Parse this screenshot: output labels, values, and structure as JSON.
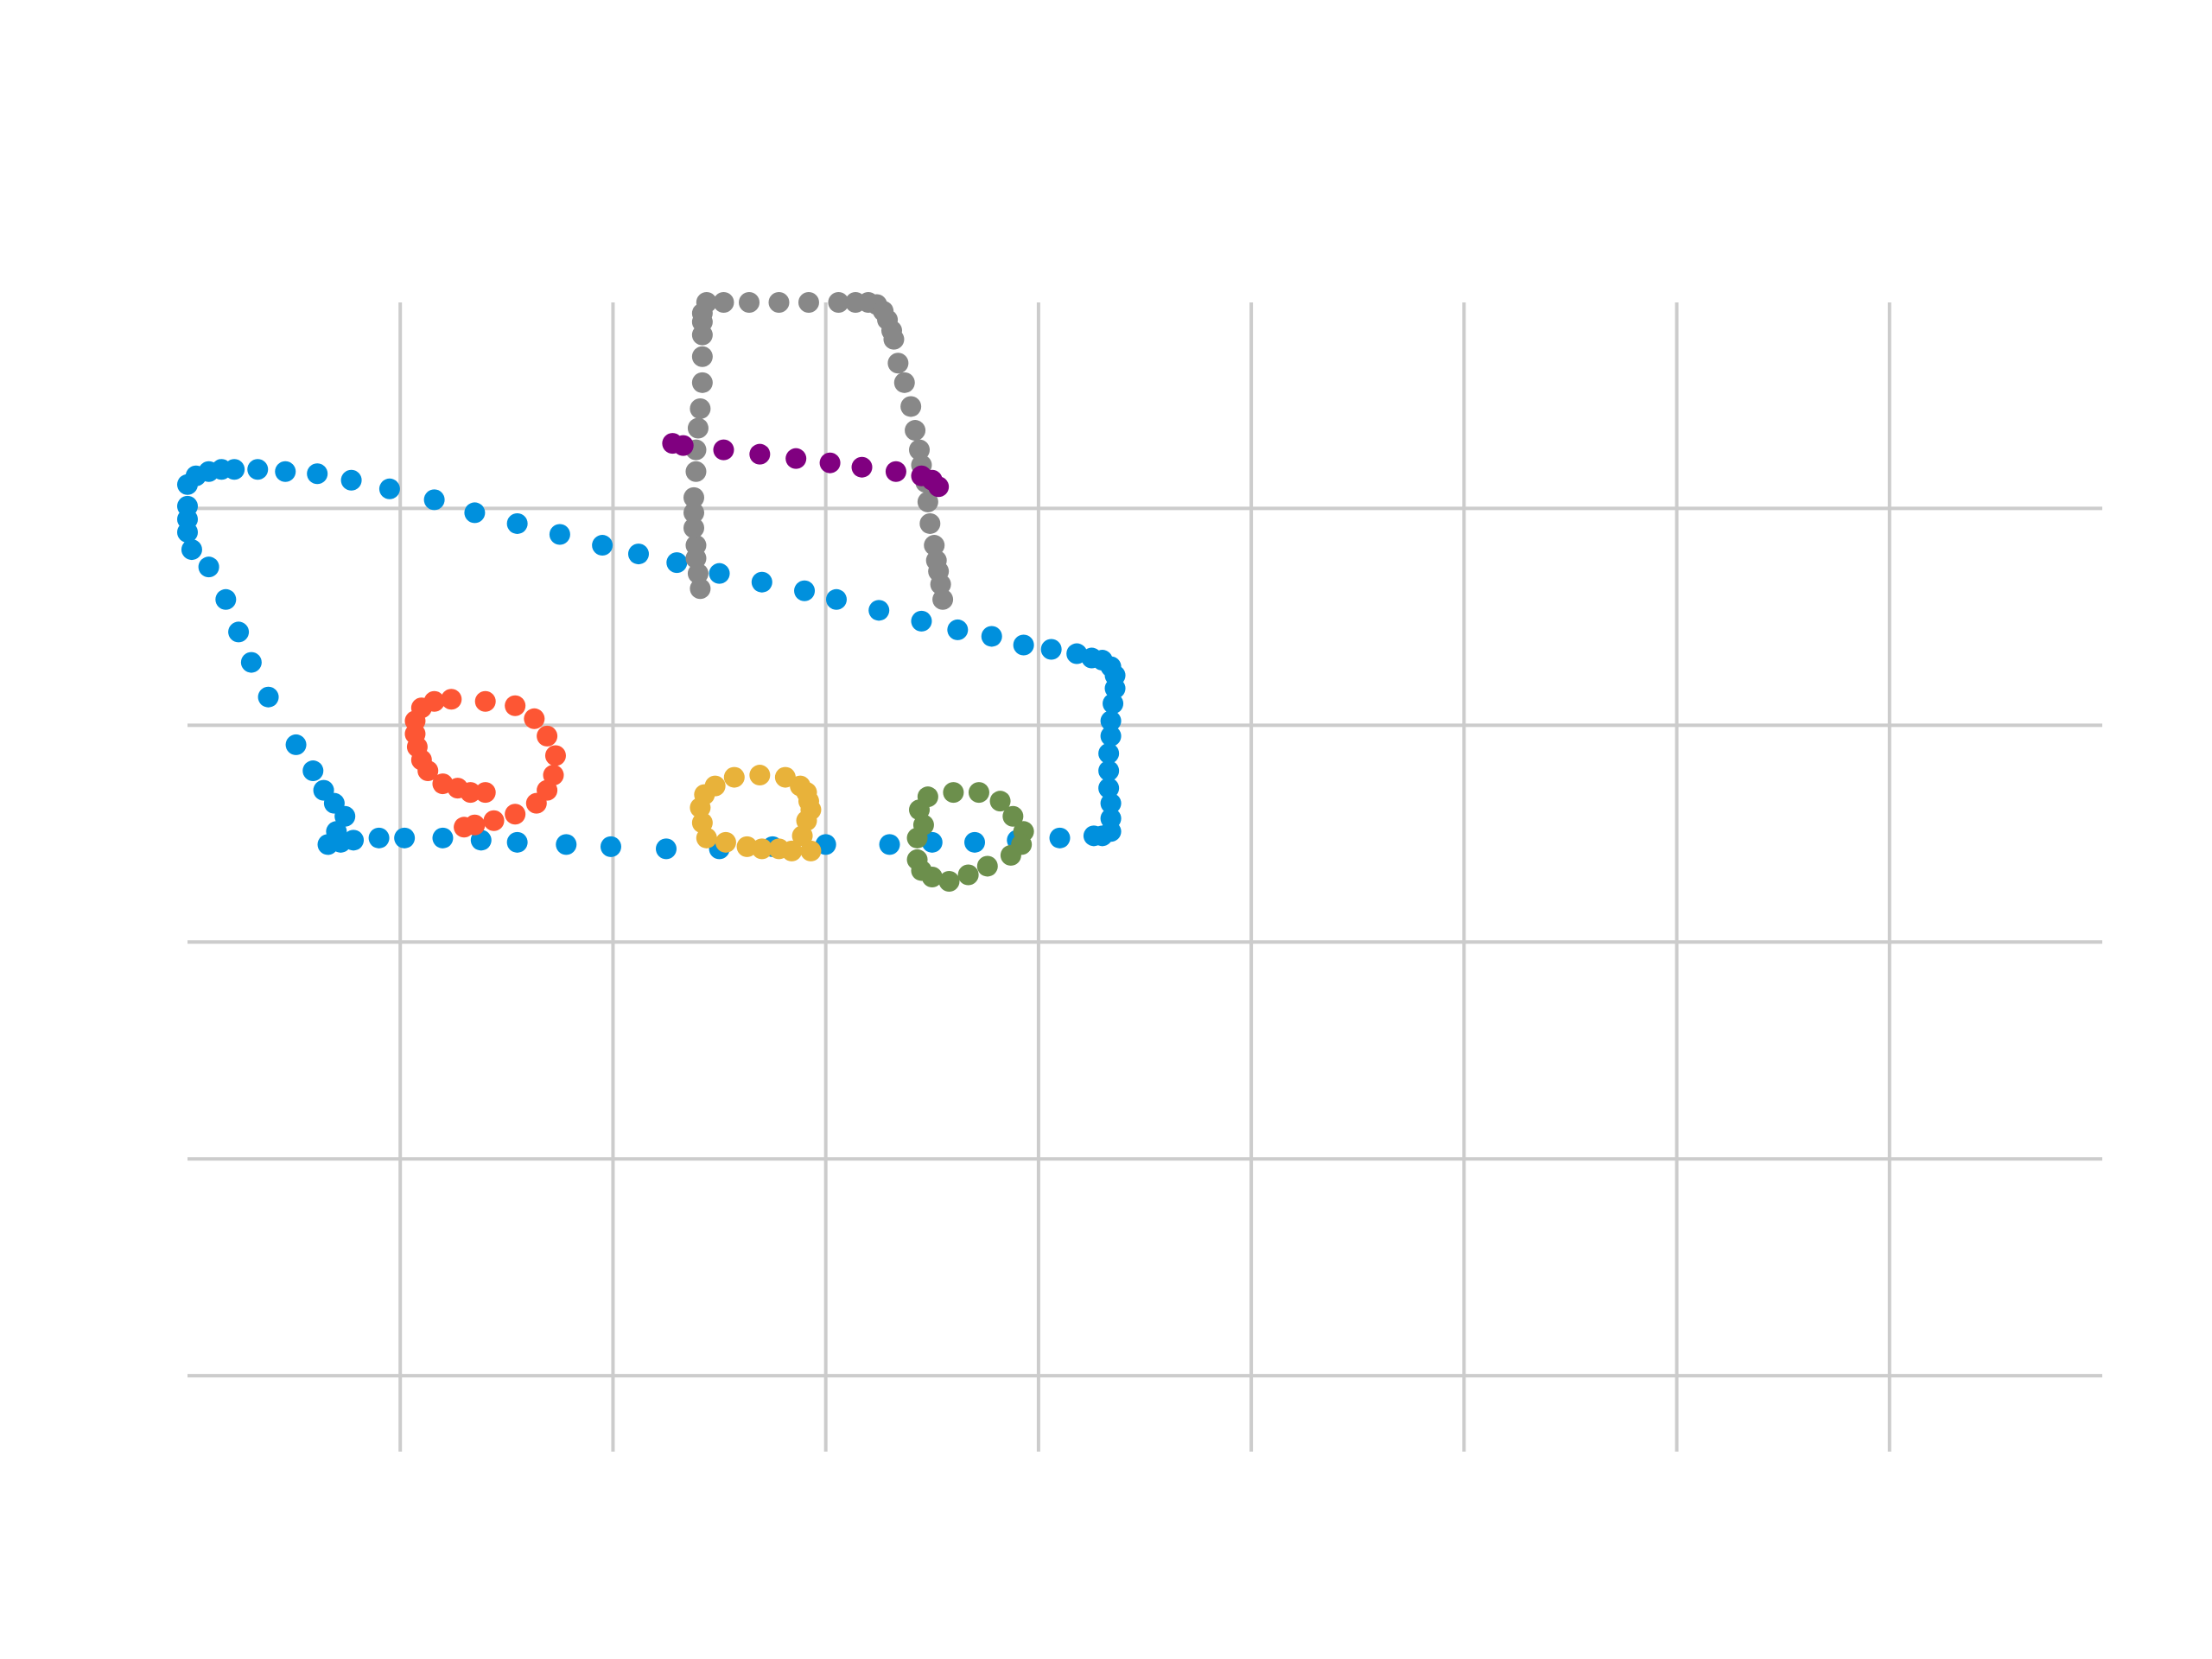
{
  "chart_data": {
    "type": "scatter",
    "title": "",
    "xlabel": "",
    "ylabel": "",
    "xlim": [
      0,
      9
    ],
    "ylim": [
      0,
      5.3
    ],
    "x_gridlines": [
      1,
      2,
      3,
      4,
      5,
      6,
      7,
      8
    ],
    "y_gridlines": [
      0.35,
      1.35,
      2.35,
      3.35,
      4.35
    ],
    "grid": true,
    "legend": "none",
    "series": [
      {
        "color": "#0090dd",
        "points": [
          [
            0.0,
            4.46
          ],
          [
            0.04,
            4.5
          ],
          [
            0.1,
            4.52
          ],
          [
            0.16,
            4.53
          ],
          [
            0.22,
            4.53
          ],
          [
            0.33,
            4.53
          ],
          [
            0.46,
            4.52
          ],
          [
            0.61,
            4.51
          ],
          [
            0.77,
            4.48
          ],
          [
            0.95,
            4.44
          ],
          [
            1.16,
            4.39
          ],
          [
            1.35,
            4.33
          ],
          [
            1.55,
            4.28
          ],
          [
            1.75,
            4.23
          ],
          [
            1.95,
            4.18
          ],
          [
            2.12,
            4.14
          ],
          [
            2.3,
            4.1
          ],
          [
            2.5,
            4.05
          ],
          [
            2.7,
            4.01
          ],
          [
            2.9,
            3.97
          ],
          [
            3.05,
            3.93
          ],
          [
            3.25,
            3.88
          ],
          [
            3.45,
            3.83
          ],
          [
            3.62,
            3.79
          ],
          [
            3.78,
            3.76
          ],
          [
            3.93,
            3.72
          ],
          [
            4.06,
            3.7
          ],
          [
            4.18,
            3.68
          ],
          [
            4.25,
            3.66
          ],
          [
            4.3,
            3.65
          ],
          [
            4.34,
            3.62
          ],
          [
            4.36,
            3.58
          ],
          [
            4.36,
            3.52
          ],
          [
            4.35,
            3.45
          ],
          [
            4.34,
            3.37
          ],
          [
            4.34,
            3.3
          ],
          [
            4.33,
            3.22
          ],
          [
            4.33,
            3.14
          ],
          [
            4.33,
            3.06
          ],
          [
            4.34,
            2.99
          ],
          [
            4.34,
            2.92
          ],
          [
            4.34,
            2.86
          ],
          [
            4.3,
            2.84
          ],
          [
            4.26,
            2.84
          ],
          [
            4.1,
            2.83
          ],
          [
            3.9,
            2.82
          ],
          [
            3.7,
            2.81
          ],
          [
            3.5,
            2.81
          ],
          [
            3.3,
            2.8
          ],
          [
            3.0,
            2.8
          ],
          [
            2.75,
            2.79
          ],
          [
            2.5,
            2.78
          ],
          [
            2.25,
            2.78
          ],
          [
            1.99,
            2.79
          ],
          [
            1.78,
            2.8
          ],
          [
            1.55,
            2.81
          ],
          [
            1.38,
            2.82
          ],
          [
            1.2,
            2.83
          ],
          [
            1.02,
            2.83
          ],
          [
            0.9,
            2.83
          ],
          [
            0.78,
            2.82
          ],
          [
            0.72,
            2.81
          ],
          [
            0.66,
            2.8
          ],
          [
            0.7,
            2.86
          ],
          [
            0.74,
            2.93
          ],
          [
            0.69,
            2.99
          ],
          [
            0.64,
            3.05
          ],
          [
            0.59,
            3.14
          ],
          [
            0.51,
            3.26
          ],
          [
            0.38,
            3.48
          ],
          [
            0.3,
            3.64
          ],
          [
            0.24,
            3.78
          ],
          [
            0.18,
            3.93
          ],
          [
            0.1,
            4.08
          ],
          [
            0.02,
            4.16
          ],
          [
            0.0,
            4.24
          ],
          [
            0.0,
            4.3
          ],
          [
            0.0,
            4.36
          ]
        ]
      },
      {
        "color": "#888888",
        "points": [
          [
            2.41,
            3.98
          ],
          [
            2.4,
            4.05
          ],
          [
            2.39,
            4.12
          ],
          [
            2.39,
            4.18
          ],
          [
            2.38,
            4.26
          ],
          [
            2.38,
            4.33
          ],
          [
            2.38,
            4.4
          ],
          [
            2.39,
            4.52
          ],
          [
            2.39,
            4.62
          ],
          [
            2.4,
            4.72
          ],
          [
            2.41,
            4.81
          ],
          [
            2.42,
            4.93
          ],
          [
            2.42,
            5.05
          ],
          [
            2.42,
            5.15
          ],
          [
            2.42,
            5.21
          ],
          [
            2.42,
            5.25
          ],
          [
            2.44,
            5.3
          ],
          [
            2.52,
            5.3
          ],
          [
            2.64,
            5.3
          ],
          [
            2.78,
            5.3
          ],
          [
            2.92,
            5.3
          ],
          [
            3.06,
            5.3
          ],
          [
            3.14,
            5.3
          ],
          [
            3.2,
            5.3
          ],
          [
            3.24,
            5.29
          ],
          [
            3.27,
            5.26
          ],
          [
            3.29,
            5.22
          ],
          [
            3.31,
            5.17
          ],
          [
            3.32,
            5.13
          ],
          [
            3.34,
            5.02
          ],
          [
            3.37,
            4.93
          ],
          [
            3.4,
            4.82
          ],
          [
            3.42,
            4.71
          ],
          [
            3.44,
            4.62
          ],
          [
            3.45,
            4.55
          ],
          [
            3.47,
            4.47
          ],
          [
            3.48,
            4.38
          ],
          [
            3.49,
            4.28
          ],
          [
            3.51,
            4.18
          ],
          [
            3.52,
            4.11
          ],
          [
            3.53,
            4.06
          ],
          [
            3.54,
            4.0
          ],
          [
            3.55,
            3.93
          ]
        ]
      },
      {
        "color": "#800080",
        "points": [
          [
            2.28,
            4.65
          ],
          [
            2.33,
            4.64
          ],
          [
            2.52,
            4.62
          ],
          [
            2.69,
            4.6
          ],
          [
            2.86,
            4.58
          ],
          [
            3.02,
            4.56
          ],
          [
            3.17,
            4.54
          ],
          [
            3.33,
            4.52
          ],
          [
            3.45,
            4.5
          ],
          [
            3.5,
            4.48
          ],
          [
            3.53,
            4.45
          ]
        ]
      },
      {
        "color": "#fd5634",
        "points": [
          [
            1.3,
            2.88
          ],
          [
            1.35,
            2.89
          ],
          [
            1.44,
            2.91
          ],
          [
            1.54,
            2.94
          ],
          [
            1.64,
            2.99
          ],
          [
            1.69,
            3.05
          ],
          [
            1.72,
            3.12
          ],
          [
            1.73,
            3.21
          ],
          [
            1.69,
            3.3
          ],
          [
            1.63,
            3.38
          ],
          [
            1.54,
            3.44
          ],
          [
            1.4,
            3.46
          ],
          [
            1.24,
            3.47
          ],
          [
            1.16,
            3.46
          ],
          [
            1.1,
            3.43
          ],
          [
            1.07,
            3.37
          ],
          [
            1.07,
            3.31
          ],
          [
            1.08,
            3.25
          ],
          [
            1.1,
            3.19
          ],
          [
            1.13,
            3.14
          ],
          [
            1.2,
            3.08
          ],
          [
            1.27,
            3.06
          ],
          [
            1.33,
            3.04
          ],
          [
            1.4,
            3.04
          ]
        ]
      },
      {
        "color": "#e8b23a",
        "points": [
          [
            2.93,
            2.77
          ],
          [
            2.84,
            2.77
          ],
          [
            2.78,
            2.78
          ],
          [
            2.7,
            2.78
          ],
          [
            2.63,
            2.79
          ],
          [
            2.53,
            2.81
          ],
          [
            2.44,
            2.83
          ],
          [
            2.42,
            2.9
          ],
          [
            2.41,
            2.97
          ],
          [
            2.43,
            3.03
          ],
          [
            2.48,
            3.07
          ],
          [
            2.57,
            3.11
          ],
          [
            2.69,
            3.12
          ],
          [
            2.81,
            3.11
          ],
          [
            2.88,
            3.07
          ],
          [
            2.91,
            3.04
          ],
          [
            2.92,
            3.0
          ],
          [
            2.93,
            2.96
          ],
          [
            2.91,
            2.91
          ],
          [
            2.89,
            2.84
          ]
        ]
      },
      {
        "color": "#6c8f4c",
        "points": [
          [
            3.43,
            2.83
          ],
          [
            3.46,
            2.89
          ],
          [
            3.44,
            2.96
          ],
          [
            3.48,
            3.02
          ],
          [
            3.6,
            3.04
          ],
          [
            3.72,
            3.04
          ],
          [
            3.82,
            3.0
          ],
          [
            3.88,
            2.93
          ],
          [
            3.93,
            2.86
          ],
          [
            3.92,
            2.8
          ],
          [
            3.87,
            2.75
          ],
          [
            3.76,
            2.7
          ],
          [
            3.67,
            2.66
          ],
          [
            3.58,
            2.63
          ],
          [
            3.5,
            2.65
          ],
          [
            3.45,
            2.68
          ],
          [
            3.43,
            2.73
          ]
        ]
      }
    ]
  }
}
